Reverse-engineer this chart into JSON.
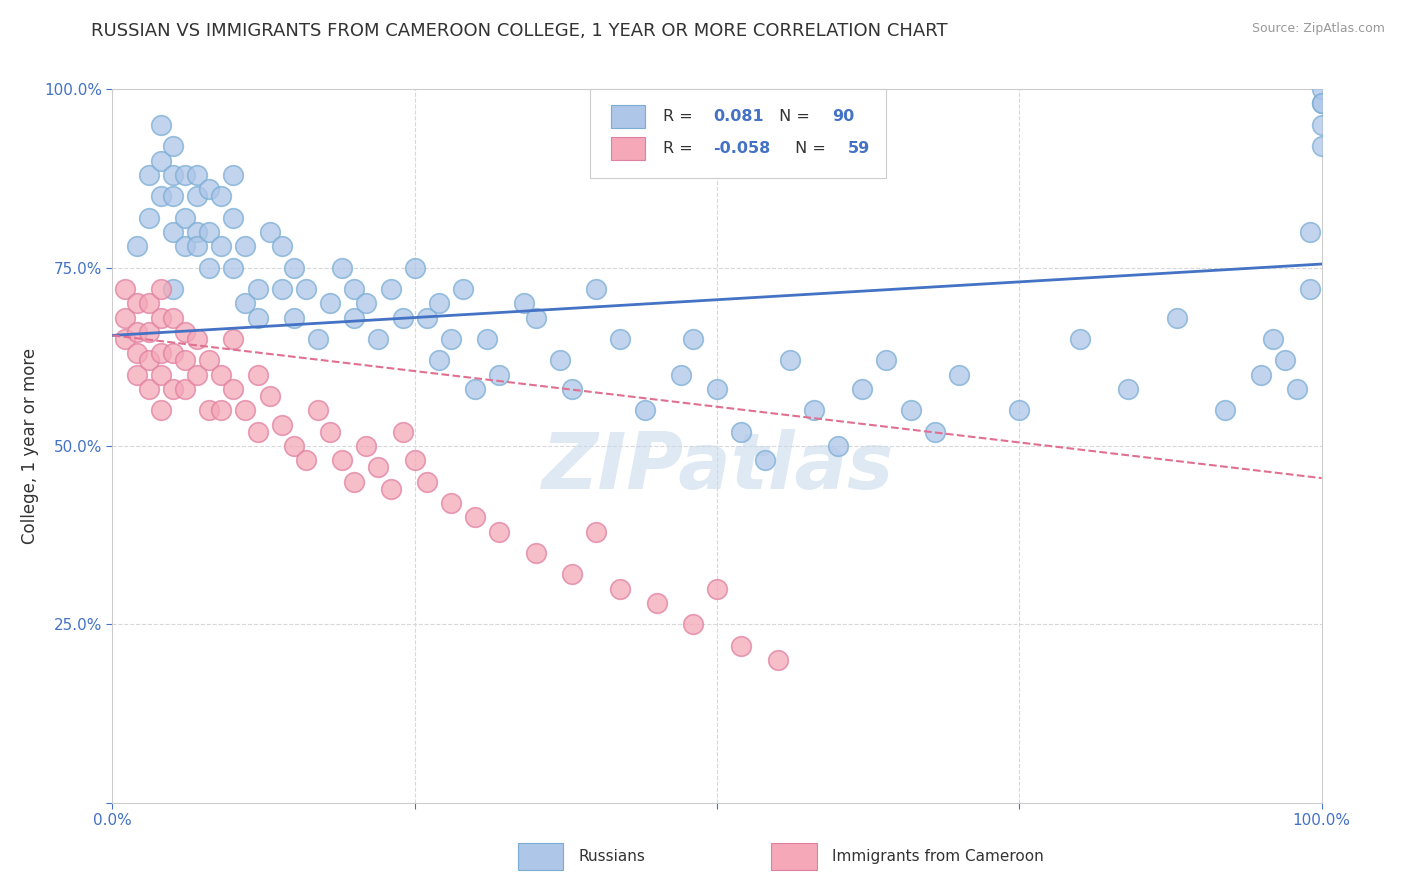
{
  "title": "RUSSIAN VS IMMIGRANTS FROM CAMEROON COLLEGE, 1 YEAR OR MORE CORRELATION CHART",
  "source": "Source: ZipAtlas.com",
  "ylabel": "College, 1 year or more",
  "xlim": [
    0.0,
    1.0
  ],
  "ylim": [
    0.0,
    1.0
  ],
  "xtick_labels": [
    "0.0%",
    "",
    "",
    "",
    "100.0%"
  ],
  "ytick_labels": [
    "",
    "25.0%",
    "50.0%",
    "75.0%",
    "100.0%"
  ],
  "blue_color": "#aec6e8",
  "pink_color": "#f4a8b8",
  "blue_line_color": "#4472c4",
  "pink_line_color": "#e07090",
  "watermark": "ZIPatlas",
  "watermark_color": "#c8d8e8",
  "blue_scatter_x": [
    0.02,
    0.03,
    0.03,
    0.04,
    0.04,
    0.04,
    0.05,
    0.05,
    0.05,
    0.05,
    0.05,
    0.06,
    0.06,
    0.06,
    0.07,
    0.07,
    0.07,
    0.07,
    0.08,
    0.08,
    0.08,
    0.09,
    0.09,
    0.1,
    0.1,
    0.1,
    0.11,
    0.11,
    0.12,
    0.12,
    0.13,
    0.14,
    0.14,
    0.15,
    0.15,
    0.16,
    0.17,
    0.18,
    0.19,
    0.2,
    0.2,
    0.21,
    0.22,
    0.23,
    0.24,
    0.25,
    0.26,
    0.27,
    0.27,
    0.28,
    0.29,
    0.3,
    0.31,
    0.32,
    0.34,
    0.35,
    0.37,
    0.38,
    0.4,
    0.42,
    0.44,
    0.47,
    0.48,
    0.5,
    0.52,
    0.54,
    0.56,
    0.58,
    0.6,
    0.62,
    0.64,
    0.66,
    0.68,
    0.7,
    0.75,
    0.8,
    0.84,
    0.88,
    0.92,
    0.95,
    0.96,
    0.97,
    0.98,
    0.99,
    0.99,
    1.0,
    1.0,
    1.0,
    1.0,
    1.0
  ],
  "blue_scatter_y": [
    0.78,
    0.82,
    0.88,
    0.85,
    0.9,
    0.95,
    0.8,
    0.85,
    0.88,
    0.92,
    0.72,
    0.82,
    0.88,
    0.78,
    0.85,
    0.8,
    0.88,
    0.78,
    0.86,
    0.8,
    0.75,
    0.85,
    0.78,
    0.88,
    0.82,
    0.75,
    0.7,
    0.78,
    0.72,
    0.68,
    0.8,
    0.72,
    0.78,
    0.75,
    0.68,
    0.72,
    0.65,
    0.7,
    0.75,
    0.68,
    0.72,
    0.7,
    0.65,
    0.72,
    0.68,
    0.75,
    0.68,
    0.62,
    0.7,
    0.65,
    0.72,
    0.58,
    0.65,
    0.6,
    0.7,
    0.68,
    0.62,
    0.58,
    0.72,
    0.65,
    0.55,
    0.6,
    0.65,
    0.58,
    0.52,
    0.48,
    0.62,
    0.55,
    0.5,
    0.58,
    0.62,
    0.55,
    0.52,
    0.6,
    0.55,
    0.65,
    0.58,
    0.68,
    0.55,
    0.6,
    0.65,
    0.62,
    0.58,
    0.72,
    0.8,
    0.98,
    0.95,
    0.92,
    1.0,
    0.98
  ],
  "pink_scatter_x": [
    0.01,
    0.01,
    0.01,
    0.02,
    0.02,
    0.02,
    0.02,
    0.03,
    0.03,
    0.03,
    0.03,
    0.04,
    0.04,
    0.04,
    0.04,
    0.04,
    0.05,
    0.05,
    0.05,
    0.06,
    0.06,
    0.06,
    0.07,
    0.07,
    0.08,
    0.08,
    0.09,
    0.09,
    0.1,
    0.1,
    0.11,
    0.12,
    0.12,
    0.13,
    0.14,
    0.15,
    0.16,
    0.17,
    0.18,
    0.19,
    0.2,
    0.21,
    0.22,
    0.23,
    0.24,
    0.25,
    0.26,
    0.28,
    0.3,
    0.32,
    0.35,
    0.38,
    0.4,
    0.42,
    0.45,
    0.48,
    0.5,
    0.52,
    0.55
  ],
  "pink_scatter_y": [
    0.68,
    0.72,
    0.65,
    0.7,
    0.66,
    0.63,
    0.6,
    0.7,
    0.66,
    0.62,
    0.58,
    0.72,
    0.68,
    0.63,
    0.6,
    0.55,
    0.68,
    0.63,
    0.58,
    0.66,
    0.62,
    0.58,
    0.65,
    0.6,
    0.62,
    0.55,
    0.6,
    0.55,
    0.65,
    0.58,
    0.55,
    0.6,
    0.52,
    0.57,
    0.53,
    0.5,
    0.48,
    0.55,
    0.52,
    0.48,
    0.45,
    0.5,
    0.47,
    0.44,
    0.52,
    0.48,
    0.45,
    0.42,
    0.4,
    0.38,
    0.35,
    0.32,
    0.38,
    0.3,
    0.28,
    0.25,
    0.3,
    0.22,
    0.2
  ],
  "grid_color": "#d8d8d8",
  "background_color": "#ffffff",
  "title_fontsize": 13,
  "axis_label_fontsize": 12,
  "tick_fontsize": 11,
  "blue_trend_start_y": 0.655,
  "blue_trend_end_y": 0.755,
  "pink_trend_start_y": 0.655,
  "pink_trend_end_y": 0.455
}
